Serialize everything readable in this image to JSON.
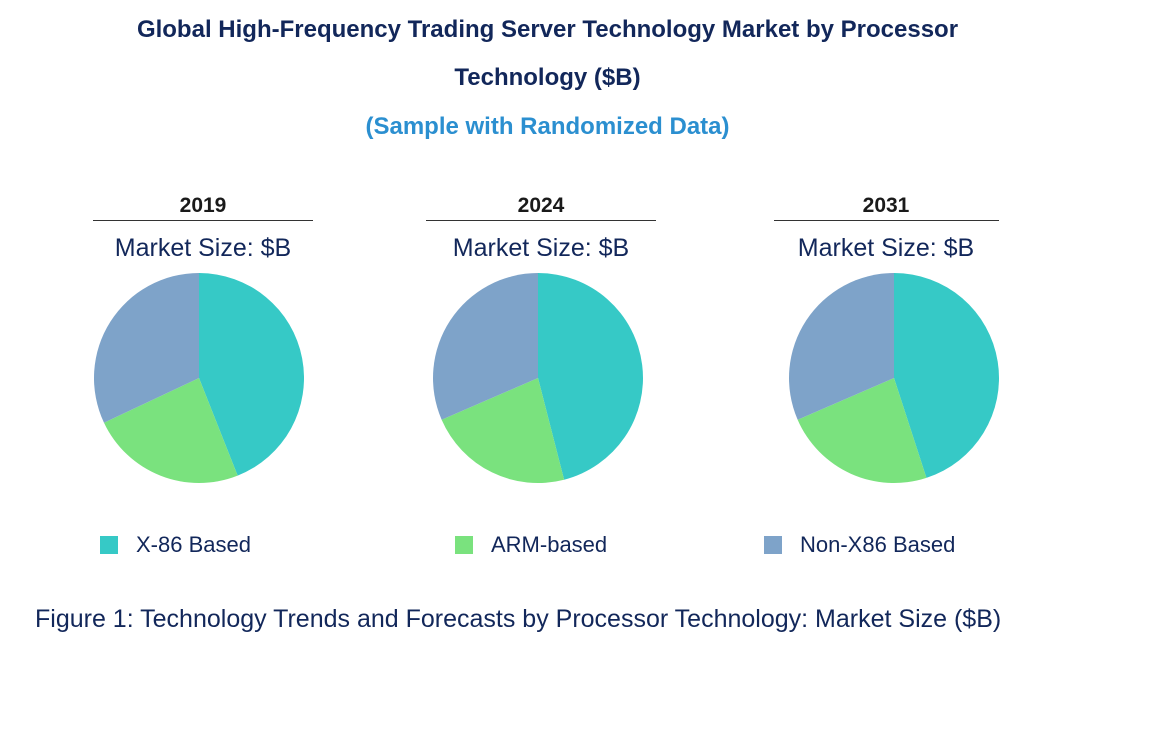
{
  "title_line1": "Global High-Frequency Trading Server Technology Market by Processor",
  "title_line2": "Technology ($B)",
  "subtitle": "(Sample with Randomized Data)",
  "caption": "Figure 1: Technology Trends and Forecasts by Processor Technology: Market Size ($B)",
  "chart_data": {
    "type": "pie",
    "unit": "$B",
    "categories": [
      "X-86 Based",
      "ARM-based",
      "Non-X86 Based"
    ],
    "colors": [
      "#36c9c6",
      "#7ae27e",
      "#7ea3c9"
    ],
    "charts": [
      {
        "title": "2019",
        "subtitle": "Market Size: $B",
        "values": [
          44.0,
          24.0,
          32.0
        ]
      },
      {
        "title": "2024",
        "subtitle": "Market Size: $B",
        "values": [
          46.0,
          22.5,
          31.5
        ]
      },
      {
        "title": "2031",
        "subtitle": "Market Size: $B",
        "values": [
          45.0,
          23.5,
          31.5
        ]
      }
    ]
  }
}
